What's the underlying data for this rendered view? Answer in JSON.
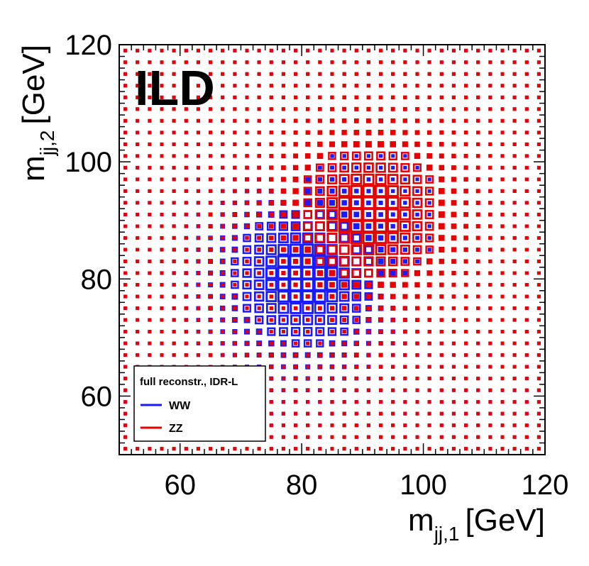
{
  "chart_data": {
    "type": "heatmap",
    "style": "box",
    "xlabel": "m",
    "xlabel_sub": "jj,1",
    "xlabel_unit": "[GeV]",
    "ylabel": "m",
    "ylabel_sub": "jj,2",
    "ylabel_unit": "[GeV]",
    "xlim": [
      50,
      120
    ],
    "ylim": [
      50,
      120
    ],
    "xticks": [
      "60",
      "80",
      "100",
      "120"
    ],
    "yticks": [
      "60",
      "80",
      "100",
      "120"
    ],
    "x_tick_values": [
      60,
      80,
      100,
      120
    ],
    "y_tick_values": [
      60,
      80,
      100,
      120
    ],
    "bins": {
      "n": 35,
      "min": 50,
      "max": 120
    },
    "label": "ILD",
    "legend": {
      "title": "full reconstr., IDR-L",
      "position": "bottom-left",
      "entries": [
        {
          "name": "WW",
          "color": "#1a1aff"
        },
        {
          "name": "ZZ",
          "color": "#e60000"
        }
      ]
    },
    "series": [
      {
        "name": "WW",
        "color": "#1a1aff",
        "peak": [
          80.4,
          80.4
        ],
        "sigma": [
          6.5,
          6.5
        ],
        "max_box_fraction": 0.95
      },
      {
        "name": "ZZ",
        "color": "#e60000",
        "peak": [
          91.2,
          91.2
        ],
        "sigma": [
          6.5,
          6.5
        ],
        "max_box_fraction": 0.95
      }
    ]
  }
}
